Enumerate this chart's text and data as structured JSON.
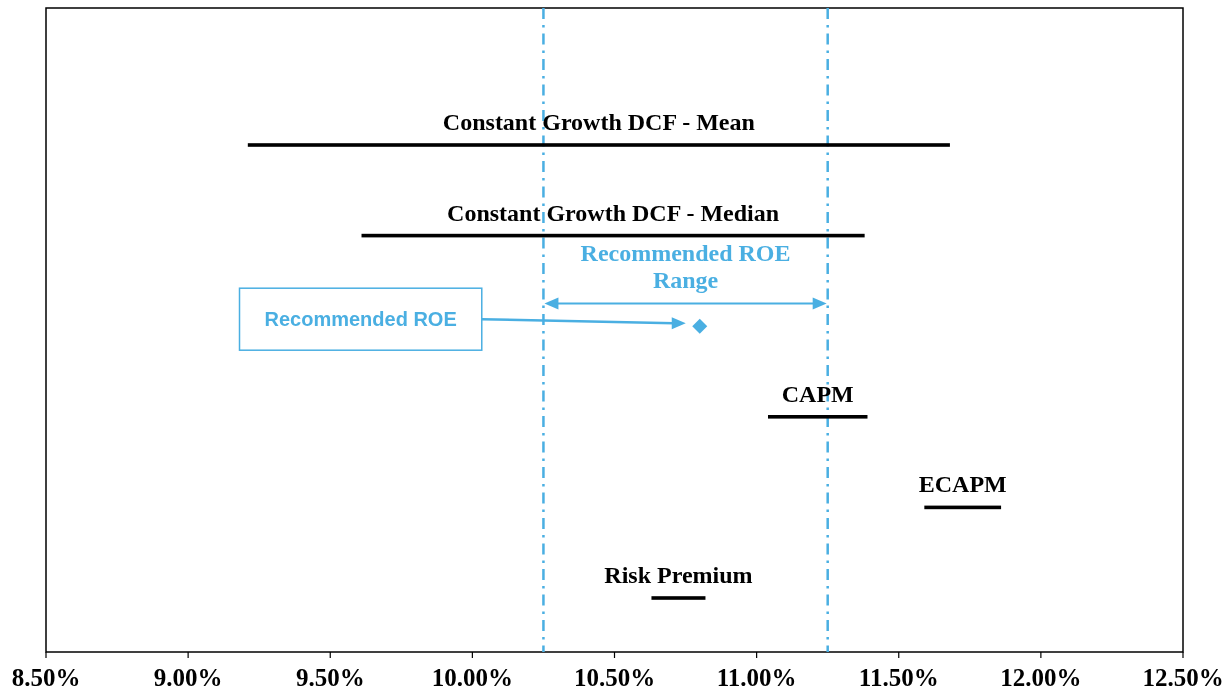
{
  "chart_data": {
    "type": "bar",
    "orientation": "horizontal",
    "categories": [
      "Constant Growth DCF - Mean",
      "Constant Growth DCF - Median",
      null,
      "CAPM",
      "ECAPM",
      "Risk Premium"
    ],
    "series": [
      {
        "color": "#000000",
        "base": [
          9.21,
          9.61,
          null,
          11.04,
          11.59,
          10.63
        ],
        "values": [
          2.47,
          1.77,
          null,
          0.35,
          0.27,
          0.19
        ]
      },
      {
        "type": "scatter",
        "name": "Recommended ROE",
        "color": "#4aafe2",
        "marker": "diamond",
        "values": [
          null,
          null,
          10.8,
          null,
          null,
          null
        ]
      }
    ],
    "xlim": [
      8.5,
      12.5
    ],
    "xticks": [
      {
        "value": 8.5,
        "label": "8.50%"
      },
      {
        "value": 9,
        "label": "9.00%"
      },
      {
        "value": 9.5,
        "label": "9.50%"
      },
      {
        "value": 10,
        "label": "10.00%"
      },
      {
        "value": 10.5,
        "label": "10.50%"
      },
      {
        "value": 11,
        "label": "11.00%"
      },
      {
        "value": 11.5,
        "label": "11.50%"
      },
      {
        "value": 12,
        "label": "12.00%"
      },
      {
        "value": 12.5,
        "label": "12.50%"
      }
    ],
    "tick_labels": "x",
    "ref_lines": [
      {
        "axis": "x",
        "value": 10.25,
        "color": "#4aafe2",
        "line_style": "dashed"
      },
      {
        "axis": "x",
        "value": 11.25,
        "color": "#4aafe2",
        "line_style": "dashed"
      }
    ],
    "annotations": [
      "Recommended ROE Range"
    ]
  }
}
